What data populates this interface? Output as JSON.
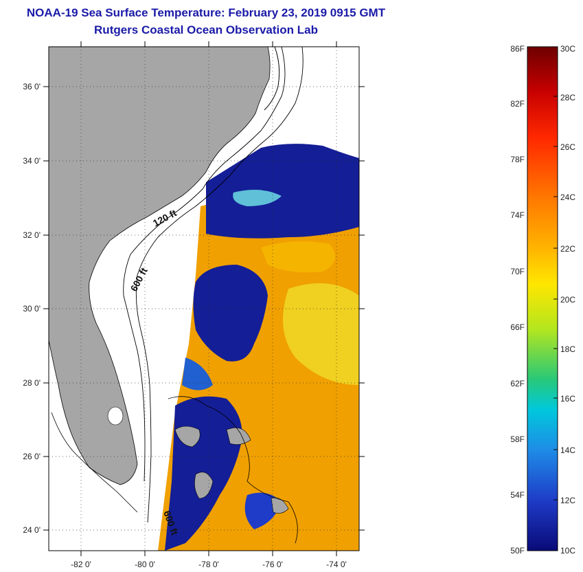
{
  "title": "NOAA-19 Sea Surface Temperature:  February 23, 2019 0915 GMT",
  "subtitle": "Rutgers Coastal Ocean Observation Lab",
  "map": {
    "lat_labels": [
      "36 0'",
      "34 0'",
      "32 0'",
      "30 0'",
      "28 0'",
      "26 0'",
      "24 0'"
    ],
    "lon_labels": [
      "-82 0'",
      "-80 0'",
      "-78 0'",
      "-76 0'",
      "-74 0'"
    ],
    "contour_labels": [
      "120 ft",
      "600 ft",
      "600 ft"
    ],
    "colors": {
      "land": "#a6a6a6",
      "cold": "#141e96",
      "warm": "#f0a000"
    }
  },
  "colorbar": {
    "f_labels": [
      "86F",
      "82F",
      "78F",
      "74F",
      "70F",
      "66F",
      "62F",
      "58F",
      "54F",
      "50F"
    ],
    "c_labels": [
      "30C",
      "28C",
      "26C",
      "24C",
      "22C",
      "20C",
      "18C",
      "16C",
      "14C",
      "12C",
      "10C"
    ],
    "scale_colors": [
      "#6e0000",
      "#c80000",
      "#ff2800",
      "#ff7800",
      "#ffb400",
      "#ffe600",
      "#b4e61e",
      "#28c878",
      "#00c8dc",
      "#1e8ce6",
      "#1e3cc8",
      "#0a0a78"
    ]
  }
}
